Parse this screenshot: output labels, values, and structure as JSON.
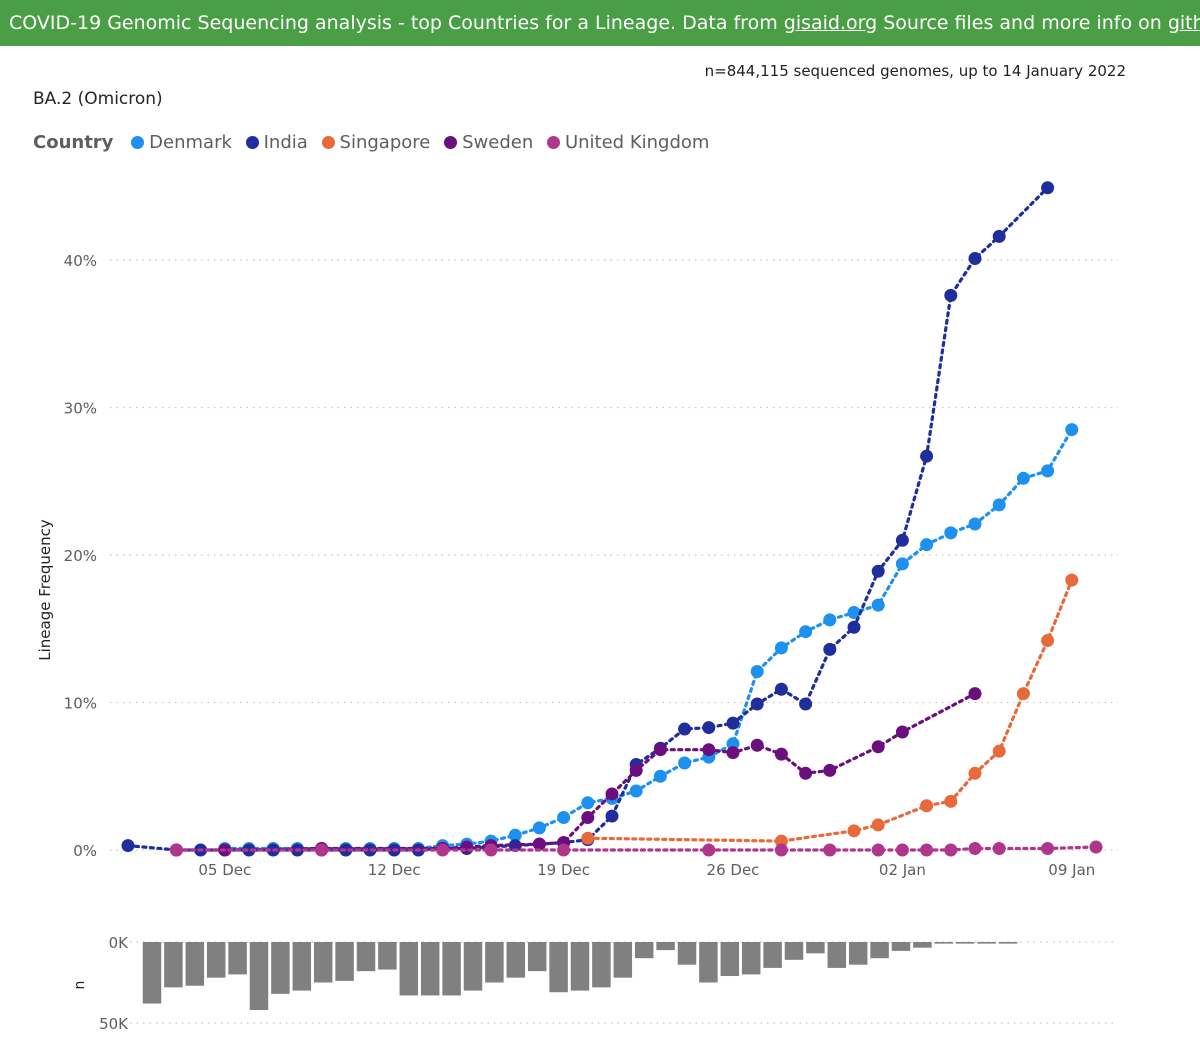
{
  "banner": {
    "part1": "COVID-19 Genomic Sequencing analysis - top Countries for a Lineage. Data from ",
    "link1": "gisaid.org",
    "part2": " Source files and more info on ",
    "link2": "github",
    "part3": "."
  },
  "subtitle": "n=844,115 sequenced genomes, up to 14 January 2022",
  "colors": {
    "Denmark": "#1e90ef",
    "India": "#1f2e9c",
    "Singapore": "#e8693a",
    "Sweden": "#6b0f7f",
    "United Kingdom": "#b0368d",
    "count_bar": "#808080"
  },
  "chart_data": [
    {
      "type": "line",
      "title": "BA.2 (Omicron)",
      "ylabel": "Lineage Frequency",
      "xlabel": "",
      "legend_title": "Country",
      "legend_position": "top-left",
      "grid": true,
      "x_range": [
        "2021-12-01",
        "2022-01-10"
      ],
      "x_ticks": [
        {
          "date": "2021-12-05",
          "label": "05 Dec"
        },
        {
          "date": "2021-12-12",
          "label": "12 Dec"
        },
        {
          "date": "2021-12-19",
          "label": "19 Dec"
        },
        {
          "date": "2021-12-26",
          "label": "26 Dec"
        },
        {
          "date": "2022-01-02",
          "label": "02 Jan"
        },
        {
          "date": "2022-01-09",
          "label": "09 Jan"
        }
      ],
      "ylim": [
        0,
        45
      ],
      "y_ticks": [
        {
          "value": 0,
          "label": "0%"
        },
        {
          "value": 10,
          "label": "10%"
        },
        {
          "value": 20,
          "label": "20%"
        },
        {
          "value": 30,
          "label": "30%"
        },
        {
          "value": 40,
          "label": "40%"
        }
      ],
      "series": [
        {
          "name": "Denmark",
          "points": [
            [
              "2021-12-05",
              0.1
            ],
            [
              "2021-12-06",
              0.1
            ],
            [
              "2021-12-07",
              0.1
            ],
            [
              "2021-12-08",
              0.1
            ],
            [
              "2021-12-09",
              0.1
            ],
            [
              "2021-12-10",
              0.1
            ],
            [
              "2021-12-11",
              0.1
            ],
            [
              "2021-12-12",
              0.1
            ],
            [
              "2021-12-13",
              0.1
            ],
            [
              "2021-12-14",
              0.3
            ],
            [
              "2021-12-15",
              0.4
            ],
            [
              "2021-12-16",
              0.6
            ],
            [
              "2021-12-17",
              1.0
            ],
            [
              "2021-12-18",
              1.5
            ],
            [
              "2021-12-19",
              2.2
            ],
            [
              "2021-12-20",
              3.2
            ],
            [
              "2021-12-21",
              3.5
            ],
            [
              "2021-12-22",
              4.0
            ],
            [
              "2021-12-23",
              5.0
            ],
            [
              "2021-12-24",
              5.9
            ],
            [
              "2021-12-25",
              6.3
            ],
            [
              "2021-12-26",
              7.2
            ],
            [
              "2021-12-27",
              12.1
            ],
            [
              "2021-12-28",
              13.7
            ],
            [
              "2021-12-29",
              14.8
            ],
            [
              "2021-12-30",
              15.6
            ],
            [
              "2021-12-31",
              16.1
            ],
            [
              "2022-01-01",
              16.6
            ],
            [
              "2022-01-02",
              19.4
            ],
            [
              "2022-01-03",
              20.7
            ],
            [
              "2022-01-04",
              21.5
            ],
            [
              "2022-01-05",
              22.1
            ],
            [
              "2022-01-06",
              23.4
            ],
            [
              "2022-01-07",
              25.2
            ],
            [
              "2022-01-08",
              25.7
            ],
            [
              "2022-01-09",
              28.5
            ]
          ]
        },
        {
          "name": "India",
          "points": [
            [
              "2021-12-01",
              0.3
            ],
            [
              "2021-12-03",
              0.0
            ],
            [
              "2021-12-04",
              0.0
            ],
            [
              "2021-12-05",
              0.0
            ],
            [
              "2021-12-06",
              0.0
            ],
            [
              "2021-12-07",
              0.0
            ],
            [
              "2021-12-08",
              0.0
            ],
            [
              "2021-12-09",
              0.0
            ],
            [
              "2021-12-10",
              0.0
            ],
            [
              "2021-12-11",
              0.0
            ],
            [
              "2021-12-12",
              0.0
            ],
            [
              "2021-12-13",
              0.0
            ],
            [
              "2021-12-14",
              0.1
            ],
            [
              "2021-12-15",
              0.1
            ],
            [
              "2021-12-16",
              0.2
            ],
            [
              "2021-12-17",
              0.3
            ],
            [
              "2021-12-18",
              0.4
            ],
            [
              "2021-12-19",
              0.5
            ],
            [
              "2021-12-20",
              0.7
            ],
            [
              "2021-12-21",
              2.3
            ],
            [
              "2021-12-22",
              5.8
            ],
            [
              "2021-12-23",
              6.9
            ],
            [
              "2021-12-24",
              8.2
            ],
            [
              "2021-12-25",
              8.3
            ],
            [
              "2021-12-26",
              8.6
            ],
            [
              "2021-12-27",
              9.9
            ],
            [
              "2021-12-28",
              10.9
            ],
            [
              "2021-12-29",
              9.9
            ],
            [
              "2021-12-30",
              13.6
            ],
            [
              "2021-12-31",
              15.1
            ],
            [
              "2022-01-01",
              18.9
            ],
            [
              "2022-01-02",
              21.0
            ],
            [
              "2022-01-03",
              26.7
            ],
            [
              "2022-01-04",
              37.6
            ],
            [
              "2022-01-05",
              40.1
            ],
            [
              "2022-01-06",
              41.6
            ],
            [
              "2022-01-08",
              44.9
            ]
          ]
        },
        {
          "name": "Singapore",
          "points": [
            [
              "2021-12-20",
              0.8
            ],
            [
              "2021-12-28",
              0.6
            ],
            [
              "2021-12-31",
              1.3
            ],
            [
              "2022-01-01",
              1.7
            ],
            [
              "2022-01-03",
              3.0
            ],
            [
              "2022-01-04",
              3.3
            ],
            [
              "2022-01-05",
              5.2
            ],
            [
              "2022-01-06",
              6.7
            ],
            [
              "2022-01-07",
              10.6
            ],
            [
              "2022-01-08",
              14.2
            ],
            [
              "2022-01-09",
              18.3
            ]
          ]
        },
        {
          "name": "Sweden",
          "points": [
            [
              "2021-12-03",
              0.0
            ],
            [
              "2021-12-05",
              0.0
            ],
            [
              "2021-12-09",
              0.1
            ],
            [
              "2021-12-14",
              0.1
            ],
            [
              "2021-12-15",
              0.2
            ],
            [
              "2021-12-16",
              0.3
            ],
            [
              "2021-12-18",
              0.4
            ],
            [
              "2021-12-19",
              0.5
            ],
            [
              "2021-12-20",
              2.2
            ],
            [
              "2021-12-21",
              3.8
            ],
            [
              "2021-12-22",
              5.4
            ],
            [
              "2021-12-23",
              6.8
            ],
            [
              "2021-12-25",
              6.8
            ],
            [
              "2021-12-26",
              6.6
            ],
            [
              "2021-12-27",
              7.1
            ],
            [
              "2021-12-28",
              6.5
            ],
            [
              "2021-12-29",
              5.2
            ],
            [
              "2021-12-30",
              5.4
            ],
            [
              "2022-01-01",
              7.0
            ],
            [
              "2022-01-02",
              8.0
            ],
            [
              "2022-01-05",
              10.6
            ]
          ]
        },
        {
          "name": "United Kingdom",
          "points": [
            [
              "2021-12-03",
              0.0
            ],
            [
              "2021-12-09",
              0.0
            ],
            [
              "2021-12-14",
              0.0
            ],
            [
              "2021-12-16",
              0.0
            ],
            [
              "2021-12-19",
              0.0
            ],
            [
              "2021-12-25",
              0.0
            ],
            [
              "2021-12-28",
              0.0
            ],
            [
              "2021-12-30",
              0.0
            ],
            [
              "2022-01-01",
              0.0
            ],
            [
              "2022-01-02",
              0.0
            ],
            [
              "2022-01-03",
              0.0
            ],
            [
              "2022-01-04",
              0.0
            ],
            [
              "2022-01-05",
              0.1
            ],
            [
              "2022-01-06",
              0.1
            ],
            [
              "2022-01-08",
              0.1
            ],
            [
              "2022-01-10",
              0.2
            ]
          ]
        }
      ]
    },
    {
      "type": "bar",
      "ylabel": "n",
      "ylim": [
        0,
        50000
      ],
      "y_ticks": [
        {
          "value": 0,
          "label": "0K"
        },
        {
          "value": 50000,
          "label": "50K"
        }
      ],
      "x": [
        "2021-12-01",
        "2021-12-02",
        "2021-12-03",
        "2021-12-04",
        "2021-12-05",
        "2021-12-06",
        "2021-12-07",
        "2021-12-08",
        "2021-12-09",
        "2021-12-10",
        "2021-12-11",
        "2021-12-12",
        "2021-12-13",
        "2021-12-14",
        "2021-12-15",
        "2021-12-16",
        "2021-12-17",
        "2021-12-18",
        "2021-12-19",
        "2021-12-20",
        "2021-12-21",
        "2021-12-22",
        "2021-12-23",
        "2021-12-24",
        "2021-12-25",
        "2021-12-26",
        "2021-12-27",
        "2021-12-28",
        "2021-12-29",
        "2021-12-30",
        "2021-12-31",
        "2022-01-01",
        "2022-01-02",
        "2022-01-03",
        "2022-01-04",
        "2022-01-05",
        "2022-01-06",
        "2022-01-07",
        "2022-01-08",
        "2022-01-09",
        "2022-01-10"
      ],
      "values": [
        38000,
        28000,
        27000,
        22000,
        20000,
        42000,
        32000,
        30000,
        25000,
        24000,
        18000,
        17000,
        33000,
        33000,
        33000,
        30000,
        25000,
        22000,
        18000,
        31000,
        30000,
        28000,
        22000,
        10000,
        5000,
        14000,
        25000,
        21000,
        20000,
        16000,
        11000,
        7000,
        16000,
        14000,
        10000,
        5500,
        3500,
        1000,
        1000,
        1000,
        1000
      ]
    }
  ]
}
